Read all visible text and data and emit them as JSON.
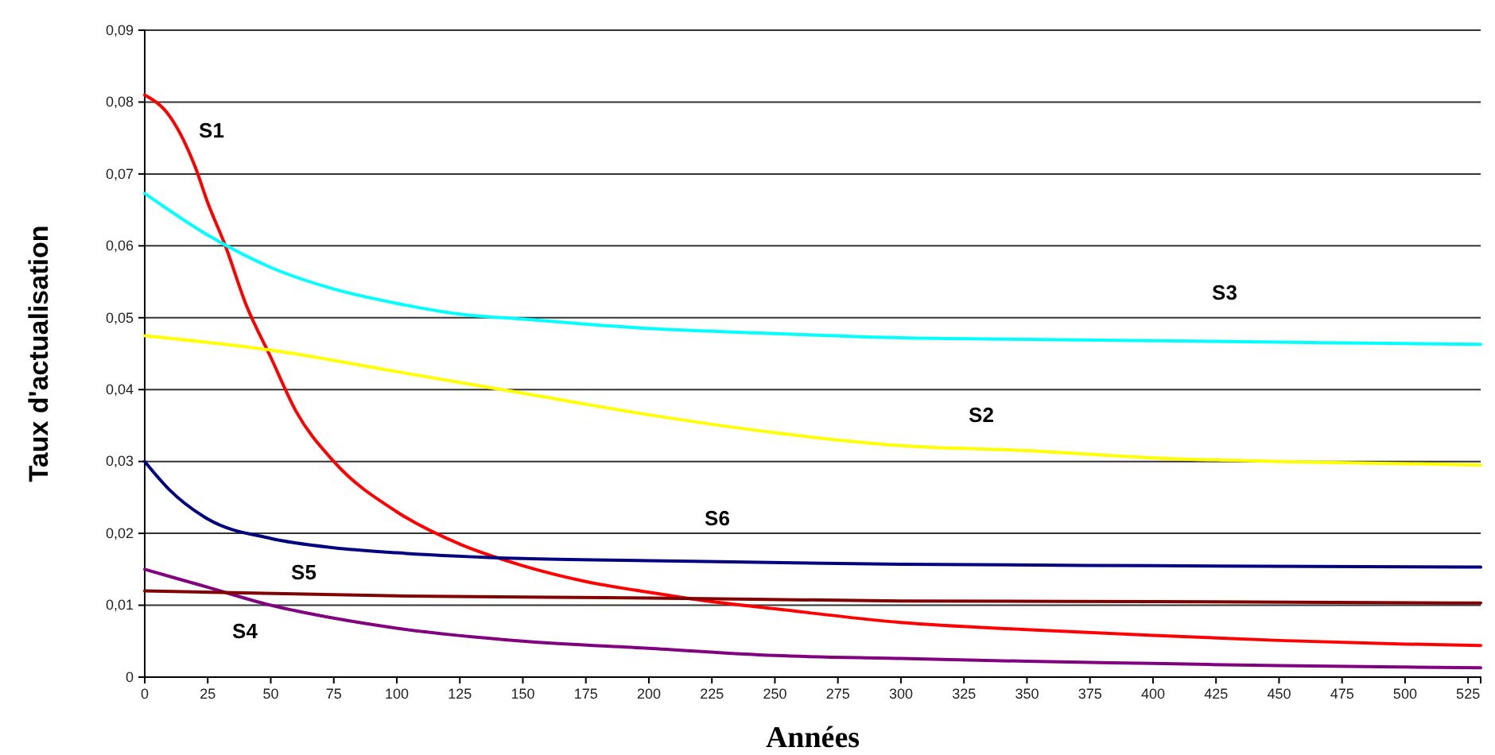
{
  "chart_data": {
    "type": "line",
    "xlabel": "Années",
    "ylabel": "Taux d'actualisation",
    "xlim": [
      0,
      530
    ],
    "ylim": [
      0,
      0.09
    ],
    "xticks": [
      0,
      25,
      50,
      75,
      100,
      125,
      150,
      175,
      200,
      225,
      250,
      275,
      300,
      325,
      350,
      375,
      400,
      425,
      450,
      475,
      500,
      525
    ],
    "yticks": [
      0,
      {
        "value": 0.01,
        "label": "0,01"
      },
      {
        "value": 0.02,
        "label": "0,02"
      },
      {
        "value": 0.03,
        "label": "0,03"
      },
      {
        "value": 0.04,
        "label": "0,04"
      },
      {
        "value": 0.05,
        "label": "0,05"
      },
      {
        "value": 0.06,
        "label": "0,06"
      },
      {
        "value": 0.07,
        "label": "0,07"
      },
      {
        "value": 0.08,
        "label": "0,08"
      },
      {
        "value": 0.09,
        "label": "0,09"
      }
    ],
    "grid": "y",
    "marker": "none",
    "line_style": "solid",
    "series": [
      {
        "name": "S1",
        "color": "#ff0000",
        "x": [
          0,
          10,
          20,
          25,
          32,
          40,
          50,
          60,
          75,
          100,
          125,
          150,
          175,
          200,
          225,
          250,
          300,
          350,
          400,
          450,
          500,
          530
        ],
        "values": [
          0.081,
          0.078,
          0.071,
          0.066,
          0.06,
          0.052,
          0.0445,
          0.037,
          0.03,
          0.023,
          0.0185,
          0.0155,
          0.0133,
          0.0118,
          0.0105,
          0.0095,
          0.0076,
          0.0066,
          0.0058,
          0.0051,
          0.0046,
          0.0044
        ]
      },
      {
        "name": "S2",
        "color": "#ffff00",
        "x": [
          0,
          50,
          100,
          150,
          200,
          250,
          300,
          350,
          400,
          450,
          500,
          530
        ],
        "values": [
          0.0475,
          0.0455,
          0.0425,
          0.0395,
          0.0365,
          0.034,
          0.0322,
          0.0315,
          0.0305,
          0.03,
          0.0297,
          0.0295
        ]
      },
      {
        "name": "S3",
        "color": "#00ffff",
        "x": [
          0,
          25,
          50,
          75,
          100,
          125,
          150,
          200,
          250,
          300,
          350,
          400,
          450,
          500,
          530
        ],
        "values": [
          0.0673,
          0.0615,
          0.057,
          0.054,
          0.052,
          0.0505,
          0.0498,
          0.0485,
          0.0478,
          0.0472,
          0.047,
          0.0468,
          0.0466,
          0.0464,
          0.0463
        ]
      },
      {
        "name": "S4",
        "color": "#800080",
        "x": [
          0,
          25,
          50,
          75,
          100,
          150,
          200,
          250,
          300,
          350,
          400,
          450,
          500,
          530
        ],
        "values": [
          0.015,
          0.0125,
          0.01,
          0.0082,
          0.0068,
          0.005,
          0.004,
          0.003,
          0.0026,
          0.0022,
          0.0019,
          0.0016,
          0.0014,
          0.0013
        ]
      },
      {
        "name": "S5",
        "color": "#800000",
        "x": [
          0,
          100,
          200,
          300,
          400,
          530
        ],
        "values": [
          0.012,
          0.0113,
          0.011,
          0.0106,
          0.0105,
          0.0103
        ]
      },
      {
        "name": "S6",
        "color": "#000080",
        "x": [
          0,
          10,
          25,
          50,
          75,
          100,
          150,
          200,
          300,
          400,
          530
        ],
        "values": [
          0.03,
          0.026,
          0.022,
          0.0193,
          0.018,
          0.0173,
          0.0165,
          0.0162,
          0.0157,
          0.0155,
          0.0153
        ]
      }
    ]
  }
}
